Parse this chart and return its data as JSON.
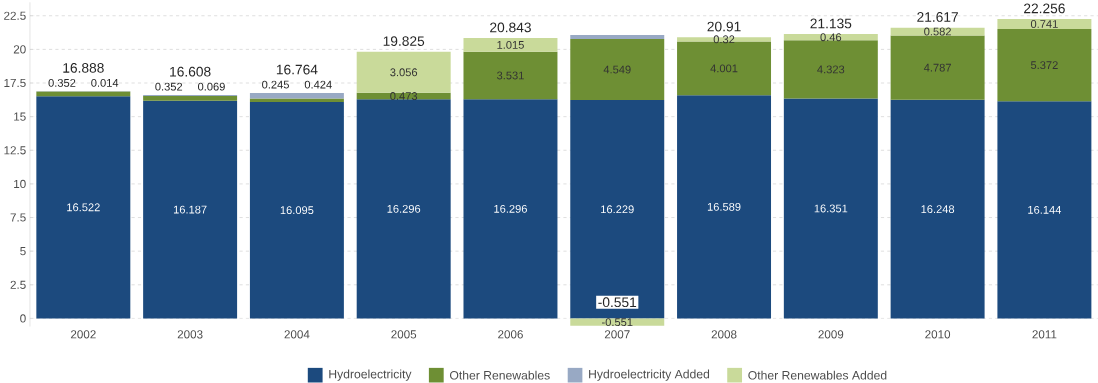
{
  "chart_data": {
    "type": "bar",
    "stacked": true,
    "categories": [
      "2002",
      "2003",
      "2004",
      "2005",
      "2006",
      "2007",
      "2008",
      "2009",
      "2010",
      "2011"
    ],
    "series": [
      {
        "name": "Hydroelectricity",
        "color": "#1c4a7e",
        "values": [
          16.522,
          16.187,
          16.095,
          16.296,
          16.296,
          16.229,
          16.589,
          16.351,
          16.248,
          16.144
        ]
      },
      {
        "name": "Other Renewables",
        "color": "#6e8f34",
        "values": [
          0.352,
          0.352,
          0.245,
          0.473,
          3.531,
          4.549,
          4.001,
          4.323,
          4.787,
          5.372
        ]
      },
      {
        "name": "Hydroelectricity Added",
        "color": "#98a9c4",
        "values": [
          0.014,
          0.069,
          0.424,
          null,
          null,
          0.3,
          null,
          null,
          null,
          null
        ],
        "value_labels": [
          "0.014",
          "0.069",
          "0.424",
          null,
          null,
          null,
          null,
          null,
          null,
          null
        ]
      },
      {
        "name": "Other Renewables Added",
        "color": "#c9da9a",
        "values": [
          null,
          null,
          null,
          3.056,
          1.015,
          -0.551,
          0.32,
          0.46,
          0.582,
          0.741
        ]
      }
    ],
    "data_labels": true,
    "totals": [
      "16.888",
      "16.608",
      "16.764",
      "19.825",
      "20.843",
      null,
      "20.91",
      "21.135",
      "21.617",
      "22.256"
    ],
    "annotations": [
      {
        "text": "-0.551",
        "x": "2007",
        "y": -0.551
      }
    ],
    "ylim": [
      -0.6,
      23.5
    ],
    "yticks": [
      0,
      2.5,
      5,
      7.5,
      10,
      12.5,
      15,
      17.5,
      20,
      22.5
    ],
    "grid": "y",
    "legend": "bottom"
  }
}
